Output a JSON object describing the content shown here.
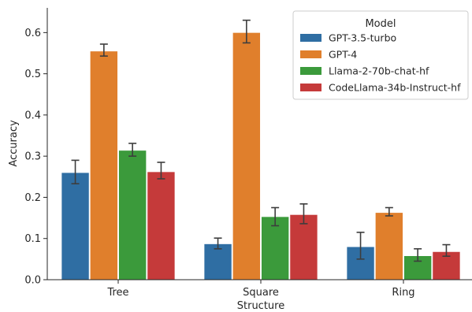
{
  "chart_data": {
    "type": "bar",
    "xlabel": "Structure",
    "ylabel": "Accuracy",
    "categories": [
      "Tree",
      "Square",
      "Ring"
    ],
    "ylim": [
      0,
      0.66
    ],
    "yticks": [
      0.0,
      0.1,
      0.2,
      0.3,
      0.4,
      0.5,
      0.6
    ],
    "ytick_labels": [
      "0.0",
      "0.1",
      "0.2",
      "0.3",
      "0.4",
      "0.5",
      "0.6"
    ],
    "legend": {
      "title": "Model",
      "placement": "top-right"
    },
    "series": [
      {
        "name": "GPT-3.5-turbo",
        "color": "#2f6ea3",
        "values": [
          0.26,
          0.087,
          0.08
        ],
        "err_low": [
          0.233,
          0.075,
          0.05
        ],
        "err_high": [
          0.29,
          0.101,
          0.115
        ]
      },
      {
        "name": "GPT-4",
        "color": "#e07f2c",
        "values": [
          0.555,
          0.6,
          0.163
        ],
        "err_low": [
          0.543,
          0.575,
          0.155
        ],
        "err_high": [
          0.572,
          0.63,
          0.175
        ]
      },
      {
        "name": "Llama-2-70b-chat-hf",
        "color": "#3b9a3b",
        "values": [
          0.314,
          0.153,
          0.058
        ],
        "err_low": [
          0.3,
          0.131,
          0.045
        ],
        "err_high": [
          0.331,
          0.175,
          0.075
        ]
      },
      {
        "name": "CodeLlama-34b-Instruct-hf",
        "color": "#c53a3a",
        "values": [
          0.262,
          0.158,
          0.068
        ],
        "err_low": [
          0.245,
          0.136,
          0.057
        ],
        "err_high": [
          0.285,
          0.184,
          0.085
        ]
      }
    ]
  }
}
